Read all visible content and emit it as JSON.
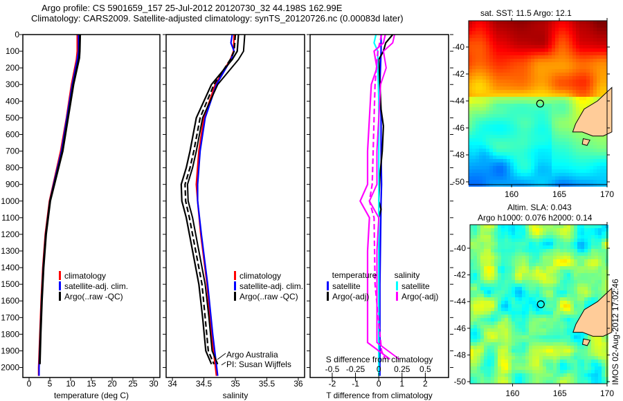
{
  "title_line1": "Argo profile: CS 5901659_157 25-Jul-2012 20120730_32 44.198S 162.99E",
  "title_line2": "Climatology: CARS2009. Satellite-adjusted climatology: synTS_20120726.nc (0.00083d later)",
  "sst_title": "sat. SST: 11.5 Argo: 12.1",
  "sla_title1": "Altim. SLA: 0.043",
  "sla_title2": "Argo h1000: 0.076 h2000: 0.14",
  "stamp": "IMOS 02-Aug-2012 17:02:46",
  "credit1": "Argo Australia",
  "credit2": "PI: Susan Wijffels",
  "colors": {
    "climatology": "#ff0000",
    "satellite": "#0000ff",
    "argo": "#000000",
    "sal_sat": "#00ffff",
    "sal_argo": "#ff00ff",
    "land": "#ffcc99"
  },
  "chart_data": [
    {
      "type": "line",
      "name": "temperature",
      "xlabel": "temperature (deg C)",
      "xlim": [
        -1.5,
        31.5
      ],
      "ylim": [
        2060,
        0
      ],
      "xticks": [
        "0",
        "5",
        "10",
        "15",
        "20",
        "25",
        "30"
      ],
      "xtickvals": [
        0,
        5,
        10,
        15,
        20,
        25,
        30
      ],
      "yticks": [
        "0",
        "100",
        "200",
        "300",
        "400",
        "500",
        "600",
        "700",
        "800",
        "900",
        "1000",
        "1100",
        "1200",
        "1300",
        "1400",
        "1500",
        "1600",
        "1700",
        "1800",
        "1900",
        "2000"
      ],
      "legend": [
        "climatology",
        "satellite-adj. clim.",
        "Argo(..raw -QC)"
      ],
      "series": [
        {
          "name": "climatology",
          "color": "#ff0000",
          "depth": [
            0,
            100,
            150,
            300,
            500,
            700,
            900,
            1000,
            1200,
            1400,
            1600,
            1800,
            2000,
            2050
          ],
          "values": [
            11.6,
            11.6,
            11.4,
            10.2,
            9.0,
            7.6,
            5.8,
            4.9,
            3.9,
            3.3,
            2.9,
            2.6,
            2.3,
            2.3
          ]
        },
        {
          "name": "satellite-adj. clim.",
          "color": "#0000ff",
          "depth": [
            0,
            100,
            150,
            300,
            500,
            700,
            900,
            1000,
            1200,
            1400,
            1600,
            1800,
            2000,
            2050
          ],
          "values": [
            11.9,
            11.9,
            11.6,
            10.4,
            9.1,
            7.8,
            5.9,
            5.0,
            4.0,
            3.4,
            3.0,
            2.7,
            2.4,
            2.4
          ]
        },
        {
          "name": "Argo",
          "color": "#000000",
          "depth": [
            0,
            100,
            140,
            300,
            500,
            700,
            900,
            1000,
            1200,
            1400,
            1600,
            1800,
            1980
          ],
          "values": [
            12.2,
            12.1,
            12.0,
            10.6,
            9.3,
            8.0,
            6.0,
            5.0,
            4.0,
            3.4,
            3.0,
            2.7,
            2.5
          ]
        }
      ]
    },
    {
      "type": "line",
      "name": "salinity",
      "xlabel": "salinity",
      "xlim": [
        33.9,
        36.1
      ],
      "ylim": [
        2060,
        0
      ],
      "xticks": [
        "34",
        "34.5",
        "35",
        "35.5",
        "36"
      ],
      "xtickvals": [
        34,
        34.5,
        35,
        35.5,
        36
      ],
      "legend": [
        "climatology",
        "satellite-adj. clim.",
        "Argo(..raw -QC)"
      ],
      "series": [
        {
          "name": "climatology",
          "color": "#ff0000",
          "depth": [
            0,
            100,
            150,
            300,
            500,
            700,
            900,
            1000,
            1200,
            1500,
            1800,
            2050
          ],
          "values": [
            34.98,
            34.97,
            34.92,
            34.68,
            34.5,
            34.42,
            34.38,
            34.4,
            34.45,
            34.55,
            34.62,
            34.7
          ]
        },
        {
          "name": "satellite-adj. clim.",
          "color": "#0000ff",
          "depth": [
            0,
            50,
            100,
            150,
            300,
            500,
            700,
            900,
            1000,
            1200,
            1500,
            1800,
            2050
          ],
          "values": [
            34.95,
            34.93,
            34.98,
            34.93,
            34.7,
            34.52,
            34.44,
            34.4,
            34.4,
            34.46,
            34.56,
            34.64,
            34.72
          ]
        },
        {
          "name": "Argo",
          "color": "#000000",
          "depth": [
            0,
            100,
            150,
            300,
            500,
            700,
            800,
            900,
            1000,
            1100,
            1300,
            1500,
            1700,
            1900,
            1980
          ],
          "values": [
            35.05,
            35.03,
            34.95,
            34.62,
            34.38,
            34.28,
            34.22,
            34.14,
            34.15,
            34.22,
            34.32,
            34.42,
            34.48,
            34.53,
            34.62
          ]
        },
        {
          "name": "Argo raw",
          "color": "#000000",
          "dash": true,
          "depth": [
            0,
            100,
            150,
            300,
            500,
            700,
            800,
            900,
            1000,
            1100,
            1300,
            1500,
            1700,
            1900,
            1980
          ],
          "values": [
            35.0,
            34.98,
            34.92,
            34.66,
            34.44,
            34.34,
            34.28,
            34.2,
            34.21,
            34.27,
            34.37,
            34.47,
            34.52,
            34.57,
            34.66
          ]
        }
      ]
    },
    {
      "type": "line",
      "name": "differences",
      "xlabel": "T difference from climatology",
      "x2label": "S difference from climatology",
      "xlim": [
        -2.95,
        3.0
      ],
      "ylim": [
        2060,
        0
      ],
      "xticks": [
        "-2",
        "-1",
        "0",
        "1",
        "2"
      ],
      "xtickvals": [
        -2,
        -1,
        0,
        1,
        2
      ],
      "x2ticks": [
        "-0.5",
        "-0.25",
        "0",
        "0.25",
        "0.5"
      ],
      "x2tickvals": [
        -0.5,
        -0.25,
        0,
        0.25,
        0.5
      ],
      "legend_left_title": "temperature",
      "legend_right_title": "salinity",
      "legend": [
        "satellite",
        "Argo(-adj)",
        "satellite",
        "Argo(-adj)"
      ],
      "series": [
        {
          "name": "T satellite",
          "color": "#0000ff",
          "depth": [
            0,
            100,
            300,
            500,
            700,
            900,
            1000,
            1500,
            2050
          ],
          "values": [
            0.1,
            0.1,
            0.05,
            0.1,
            0.1,
            0.12,
            0.1,
            0.05,
            0.05
          ]
        },
        {
          "name": "T Argo(-adj)",
          "color": "#000000",
          "depth": [
            0,
            50,
            100,
            150,
            300,
            450,
            550,
            700,
            850,
            1000,
            1050,
            1100,
            1500,
            1980
          ],
          "values": [
            0.6,
            0.3,
            0.2,
            0.0,
            0.05,
            0.1,
            0.2,
            0.15,
            0.05,
            0.0,
            0.1,
            0.0,
            0.0,
            0.0
          ]
        },
        {
          "name": "S satellite",
          "color": "#00ffff",
          "depth": [
            0,
            50,
            100,
            200,
            400,
            1000,
            2050
          ],
          "values": [
            -0.03,
            -0.05,
            -0.01,
            -0.01,
            0.0,
            0.0,
            0.0
          ]
        },
        {
          "name": "S Argo(-adj)",
          "color": "#ff00ff",
          "depth": [
            0,
            50,
            100,
            200,
            300,
            500,
            700,
            900,
            1000,
            1100,
            1300,
            1500,
            1700,
            1850,
            1900,
            1950
          ],
          "values": [
            0.07,
            0.05,
            -0.05,
            -0.02,
            -0.08,
            -0.1,
            -0.12,
            -0.12,
            -0.2,
            -0.1,
            -0.12,
            -0.12,
            -0.12,
            -0.12,
            0.0,
            0.12
          ]
        },
        {
          "name": "S Argo raw",
          "color": "#ff00ff",
          "dash": true,
          "depth": [
            0,
            100,
            300,
            500,
            700,
            900,
            1000,
            1100,
            1500,
            1900,
            1950
          ],
          "values": [
            0.03,
            -0.01,
            -0.04,
            -0.05,
            -0.06,
            -0.07,
            -0.1,
            -0.05,
            -0.04,
            0.03,
            0.07
          ]
        }
      ]
    },
    {
      "type": "heatmap",
      "name": "sat_sst",
      "lon_ticks": [
        "160",
        "165",
        "170"
      ],
      "lat_ticks": [
        "-40",
        "-42",
        "-44",
        "-46",
        "-48",
        "-50"
      ],
      "profile_lon": 162.99,
      "profile_lat": -44.2
    },
    {
      "type": "heatmap",
      "name": "altim_sla",
      "lon_ticks": [
        "160",
        "165",
        "170"
      ],
      "lat_ticks": [
        "-40",
        "-42",
        "-44",
        "-46",
        "-48",
        "-50"
      ],
      "profile_lon": 162.99,
      "profile_lat": -44.2
    }
  ]
}
